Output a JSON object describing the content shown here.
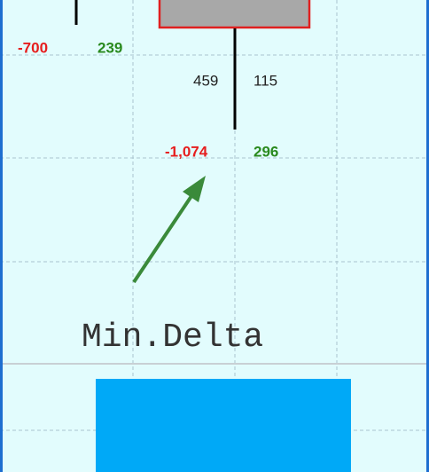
{
  "footprint": {
    "upper_left": {
      "min_delta": "-700",
      "max_delta": "239"
    },
    "bar": {
      "bid": "459",
      "ask": "115"
    },
    "current": {
      "min_delta": "-1,074",
      "max_delta": "296"
    }
  },
  "annotation": {
    "label": "Min.Delta"
  }
}
